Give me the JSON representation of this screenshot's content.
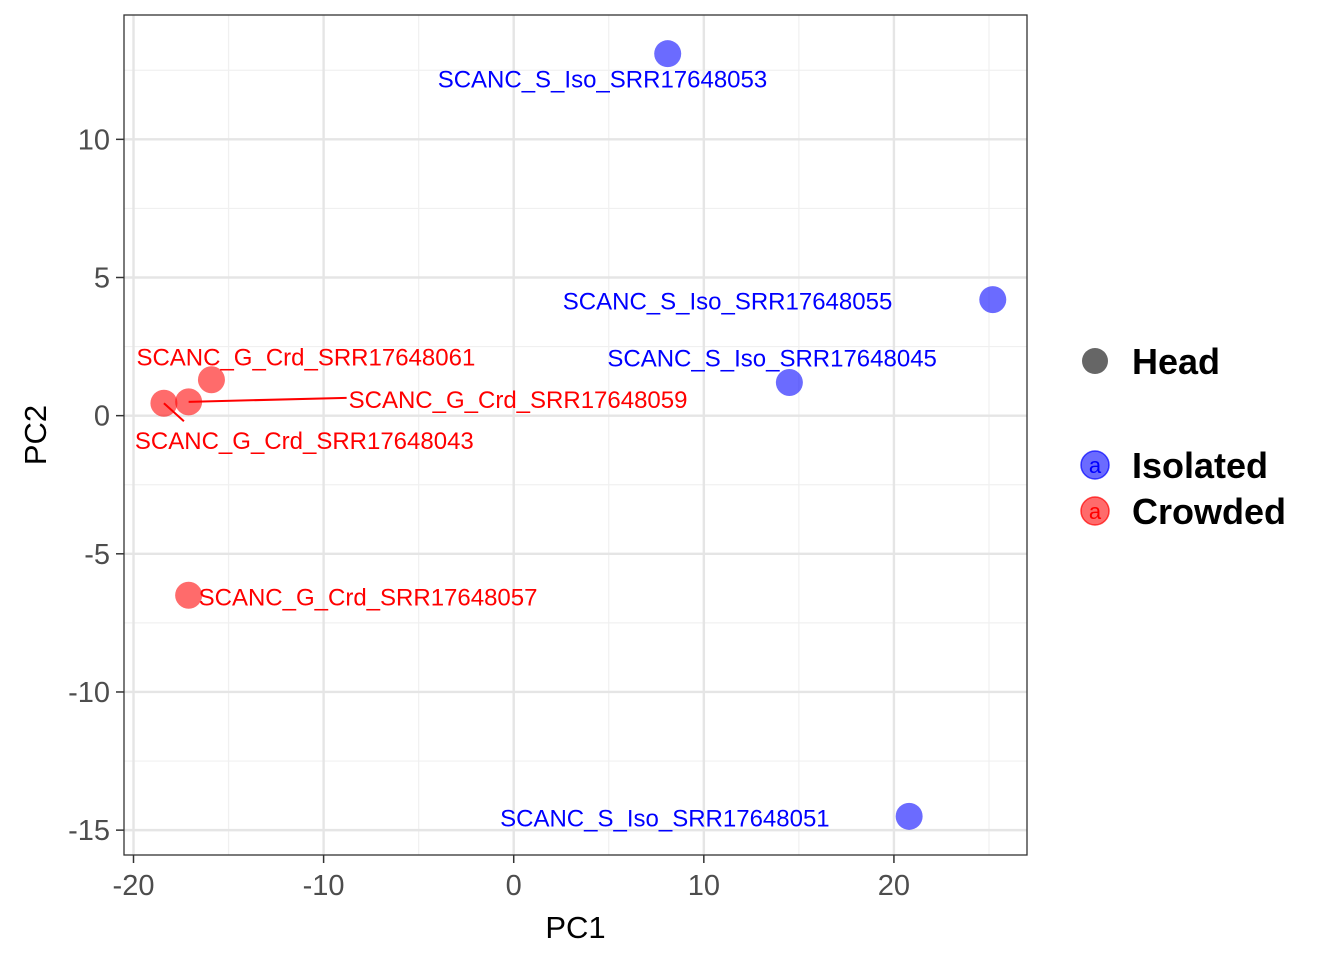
{
  "chart_data": {
    "type": "scatter",
    "xlabel": "PC1",
    "ylabel": "PC2",
    "xlim": [
      -20.5,
      27
    ],
    "ylim": [
      -15.9,
      14.5
    ],
    "xticks": [
      -20,
      -10,
      0,
      10,
      20
    ],
    "yticks": [
      -15,
      -10,
      -5,
      0,
      5,
      10
    ],
    "xtick_labels": [
      "-20",
      "-10",
      "0",
      "10",
      "20"
    ],
    "ytick_labels": [
      "-15",
      "-10",
      "-5",
      "0",
      "5",
      "10"
    ],
    "grid": true,
    "legend_position": "right",
    "legend": {
      "shape_title": "",
      "shape_items": [
        {
          "label": "Head",
          "color": "#666666"
        }
      ],
      "color_title": "",
      "color_items": [
        {
          "label": "Isolated",
          "color": "#0000ff",
          "key_letter": "a"
        },
        {
          "label": "Crowded",
          "color": "#ff0000",
          "key_letter": "a"
        }
      ]
    },
    "series": [
      {
        "name": "Isolated",
        "color": "#0000ff",
        "points": [
          {
            "x": 8.1,
            "y": 13.1,
            "label": "SCANC_S_Iso_SRR17648053"
          },
          {
            "x": 25.2,
            "y": 4.2,
            "label": "SCANC_S_Iso_SRR17648055"
          },
          {
            "x": 14.5,
            "y": 1.2,
            "label": "SCANC_S_Iso_SRR17648045"
          },
          {
            "x": 20.8,
            "y": -14.5,
            "label": "SCANC_S_Iso_SRR17648051"
          }
        ]
      },
      {
        "name": "Crowded",
        "color": "#ff0000",
        "points": [
          {
            "x": -15.9,
            "y": 1.3,
            "label": "SCANC_G_Crd_SRR17648061"
          },
          {
            "x": -17.1,
            "y": 0.5,
            "label": "SCANC_G_Crd_SRR17648059"
          },
          {
            "x": -18.4,
            "y": 0.45,
            "label": "SCANC_G_Crd_SRR17648043"
          },
          {
            "x": -17.1,
            "y": -6.5,
            "label": "SCANC_G_Crd_SRR17648057"
          }
        ]
      }
    ]
  }
}
